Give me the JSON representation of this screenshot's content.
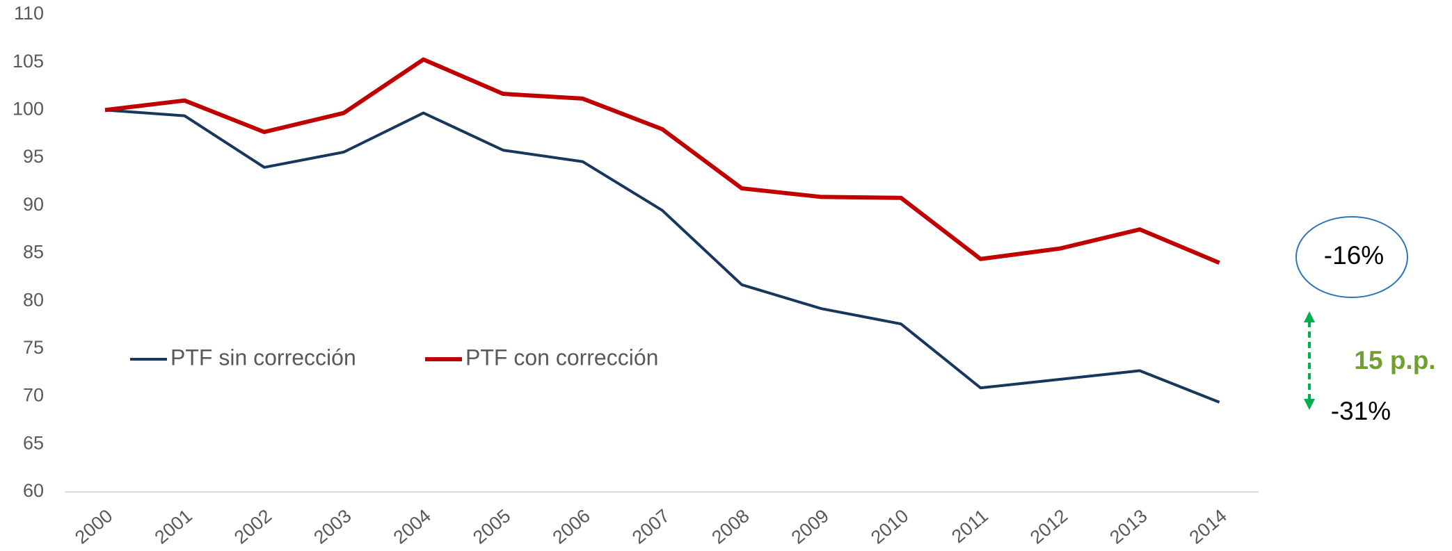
{
  "chart_data": {
    "type": "line",
    "categories": [
      "2000",
      "2001",
      "2002",
      "2003",
      "2004",
      "2005",
      "2006",
      "2007",
      "2008",
      "2009",
      "2010",
      "2011",
      "2012",
      "2013",
      "2014"
    ],
    "series": [
      {
        "name": "PTF sin corrección",
        "color": "#17375e",
        "values": [
          100,
          99.4,
          94,
          95.6,
          99.7,
          95.8,
          94.6,
          89.5,
          81.7,
          79.2,
          77.6,
          70.9,
          71.8,
          72.7,
          69.4
        ]
      },
      {
        "name": "PTF con corrección",
        "color": "#c00000",
        "values": [
          100,
          101,
          97.7,
          99.7,
          105.3,
          101.7,
          101.2,
          98,
          91.8,
          90.9,
          90.8,
          84.4,
          85.5,
          87.5,
          84
        ]
      }
    ],
    "ylim": [
      60,
      110
    ],
    "yticks": [
      60,
      65,
      70,
      75,
      80,
      85,
      90,
      95,
      100,
      105,
      110
    ],
    "grid": false,
    "annotations": [
      "-16%",
      "-31%",
      "15 p.p."
    ]
  }
}
